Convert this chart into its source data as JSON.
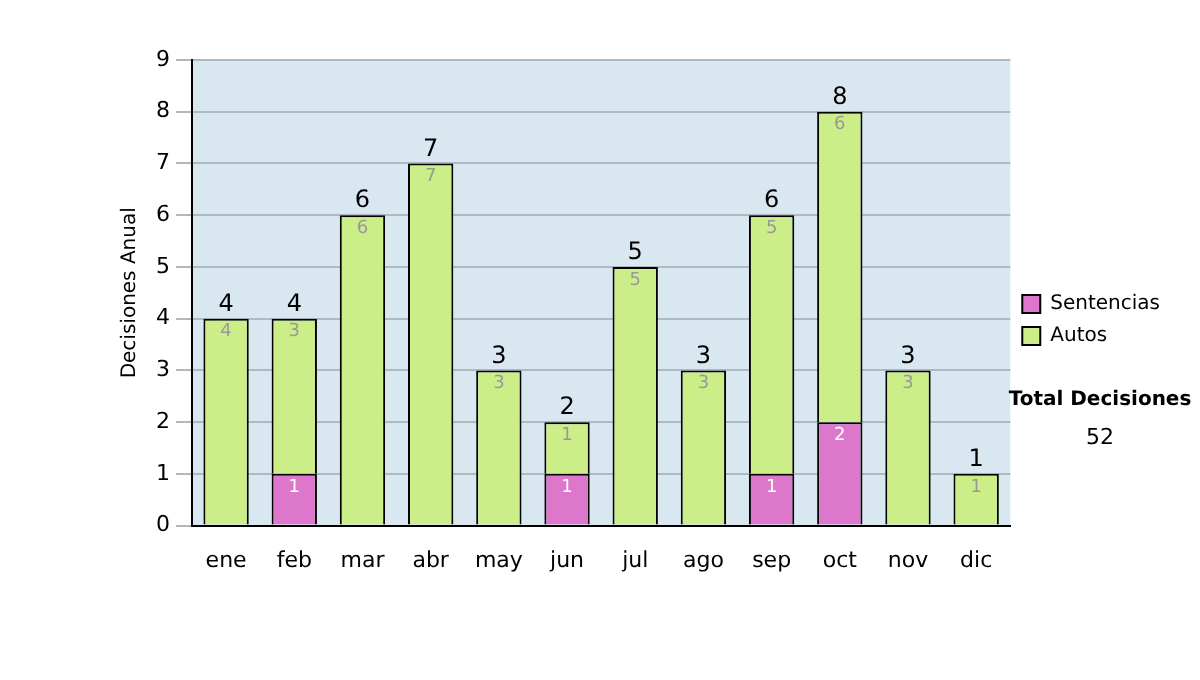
{
  "chart_data": {
    "type": "bar",
    "stacked": true,
    "ylabel": "Decisiones Anual",
    "categories": [
      "ene",
      "feb",
      "mar",
      "abr",
      "may",
      "jun",
      "jul",
      "ago",
      "sep",
      "oct",
      "nov",
      "dic"
    ],
    "series": [
      {
        "name": "Sentencias",
        "color": "#dd77cc",
        "values": [
          0,
          1,
          0,
          0,
          0,
          1,
          0,
          0,
          1,
          2,
          0,
          0
        ],
        "value_labels": [
          null,
          "1",
          null,
          null,
          null,
          "1",
          null,
          null,
          "1",
          "2",
          null,
          null
        ]
      },
      {
        "name": "Autos",
        "color": "#ccee88",
        "values": [
          4,
          3,
          6,
          7,
          3,
          1,
          5,
          3,
          5,
          6,
          3,
          1
        ],
        "value_labels": [
          "4",
          "3",
          "6",
          "7",
          "3",
          "1",
          "5",
          "3",
          "5",
          "6",
          "3",
          "1"
        ]
      }
    ],
    "totals": [
      "4",
      "4",
      "6",
      "7",
      "3",
      "2",
      "5",
      "3",
      "6",
      "8",
      "3",
      "1"
    ],
    "ylim": [
      0,
      9
    ],
    "yticks": [
      0,
      1,
      2,
      3,
      4,
      5,
      6,
      7,
      8,
      9
    ],
    "grid": "y",
    "legend": "right",
    "annotations": [
      "Total Decisiones",
      "52"
    ]
  }
}
